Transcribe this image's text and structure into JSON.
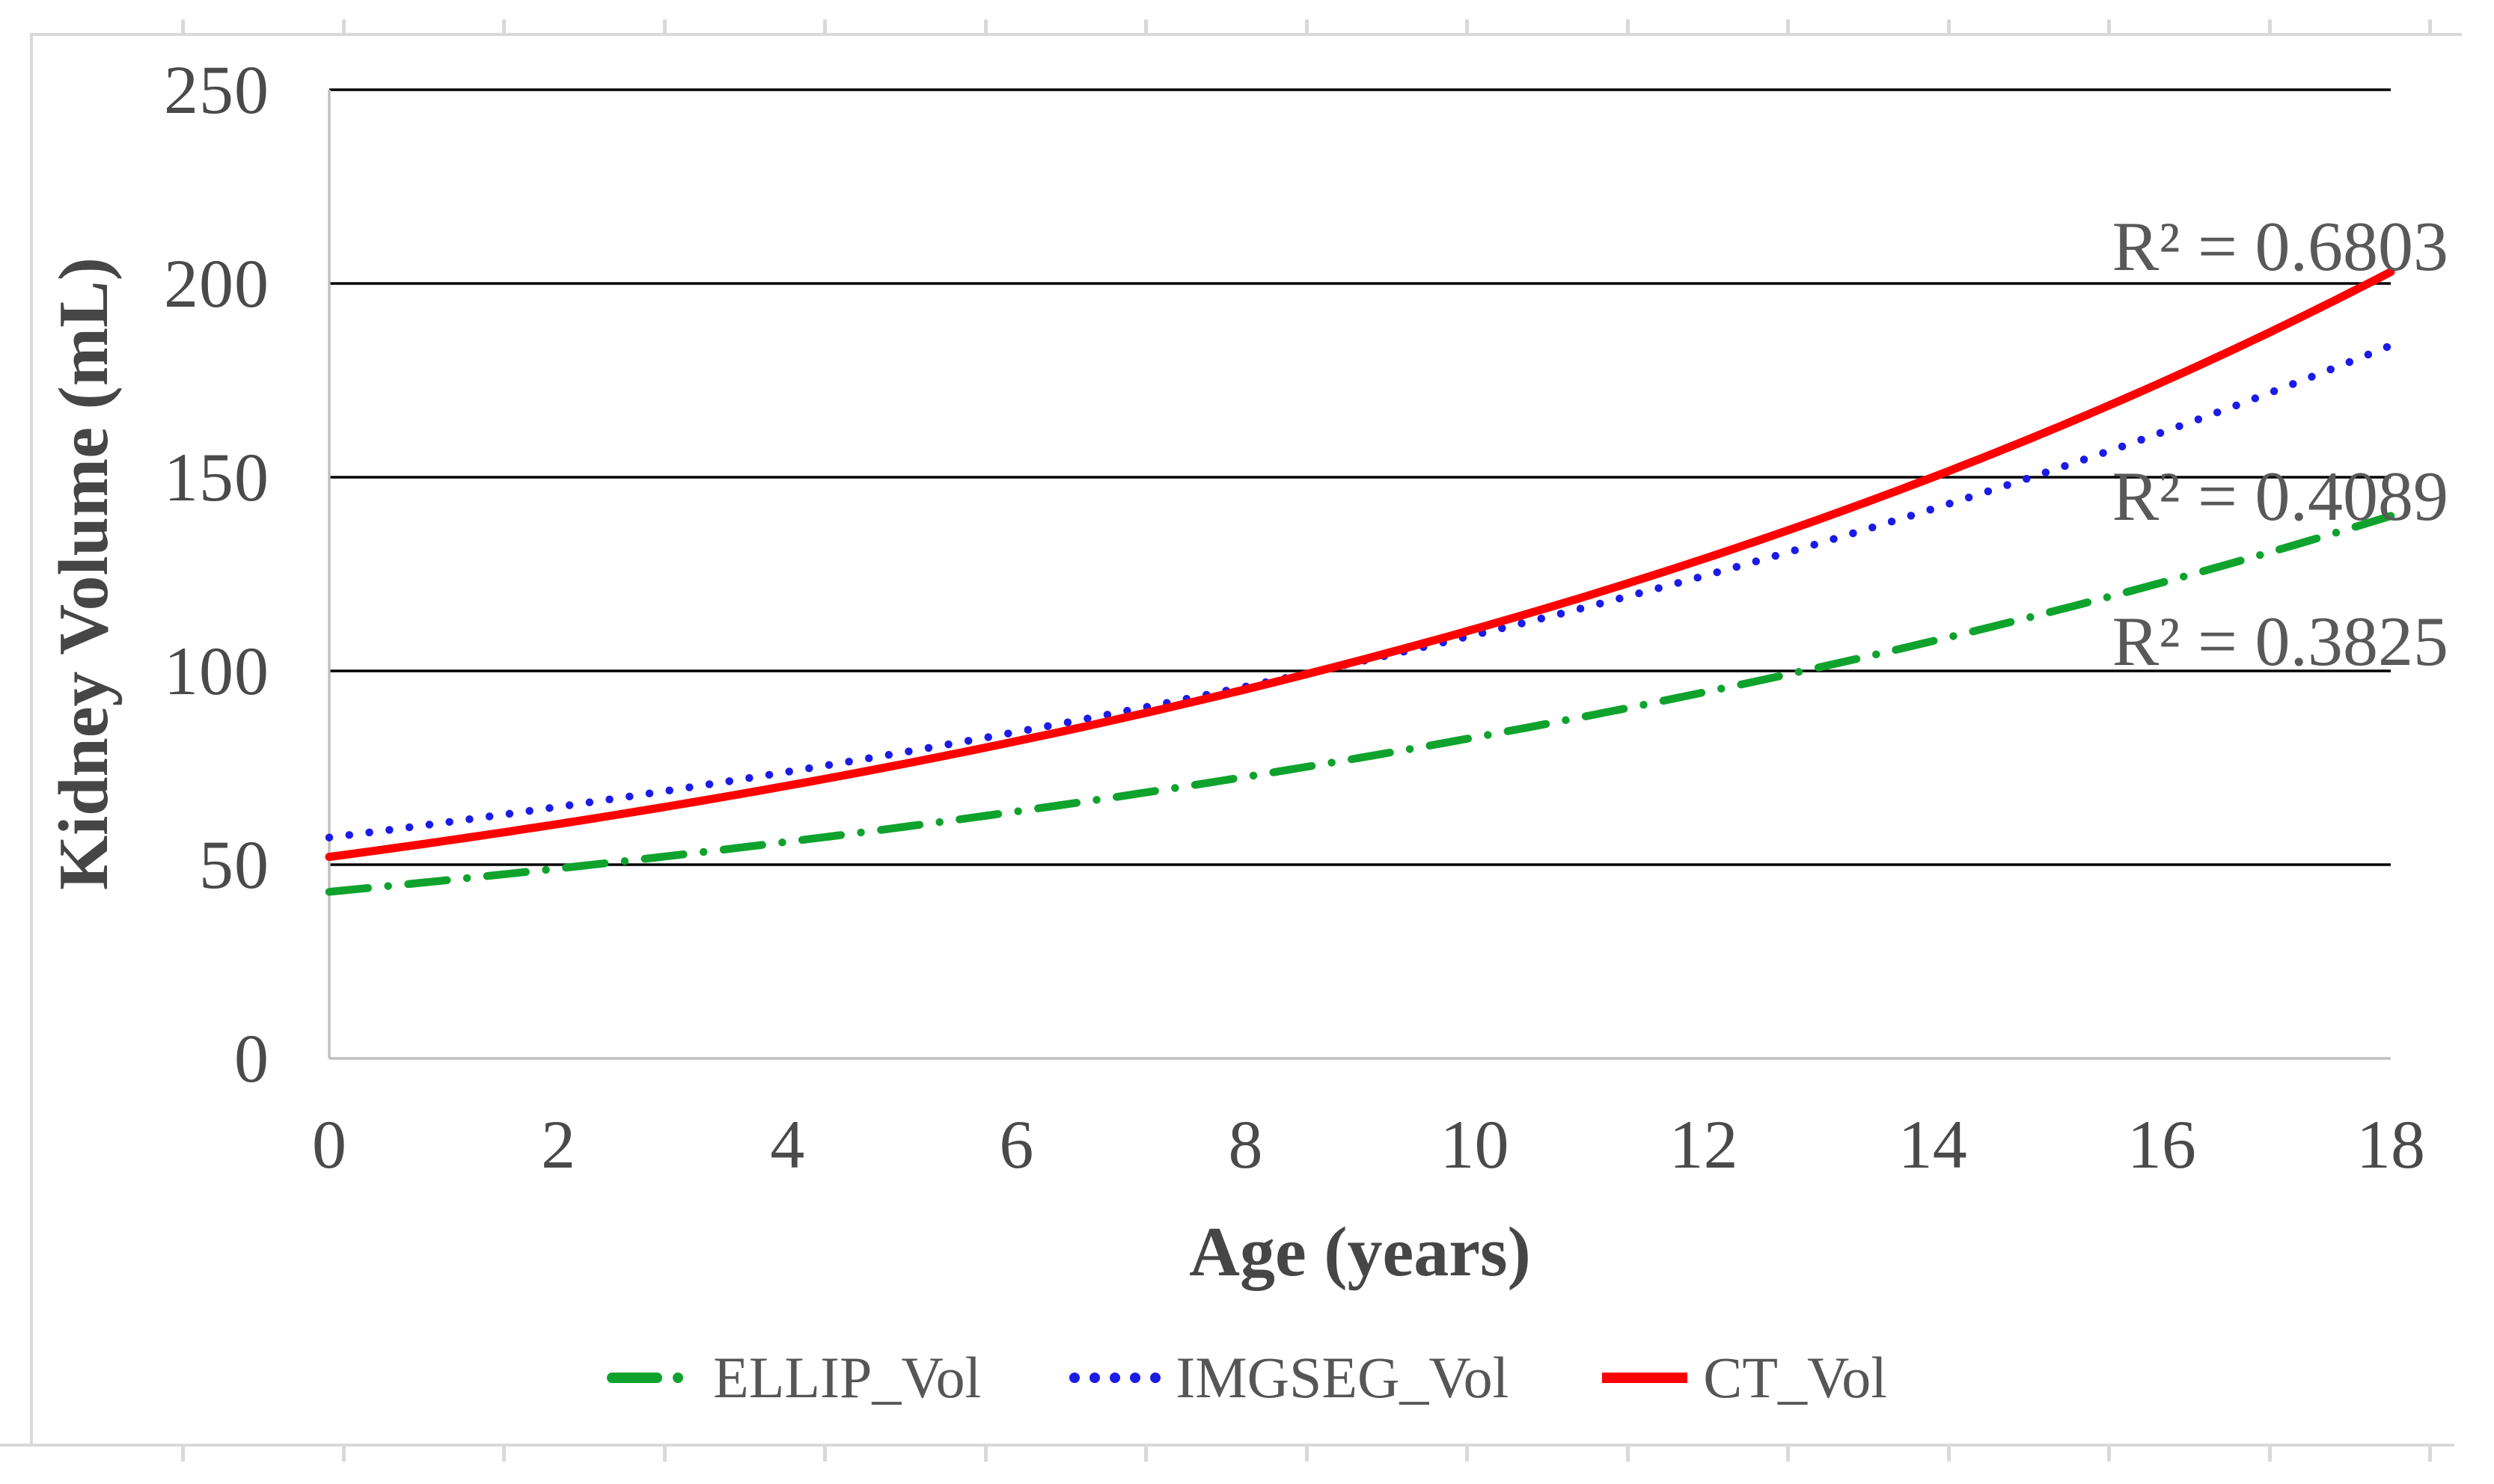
{
  "figure": {
    "background": "#ffffff",
    "frame_color": "#d9d9d9",
    "text_colors": {
      "tick": "#4a4a4a",
      "axis_title": "#464646",
      "annotation": "#595959",
      "legend": "#565656"
    },
    "y_axis": {
      "title": "Kidney Volume (mL)",
      "ticks": [
        250,
        200,
        150,
        100,
        50,
        0
      ],
      "min": 0,
      "max": 250,
      "gridline_color": "#000000",
      "axis_line_color": "#bfbfbf"
    },
    "x_axis": {
      "title": "Age (years)",
      "ticks": [
        0,
        2,
        4,
        6,
        8,
        10,
        12,
        14,
        16,
        18
      ],
      "min": 0,
      "max": 18,
      "axis_line_color": "#bfbfbf"
    },
    "annotations": [
      {
        "text": "R² = 0.6803",
        "series": "CT_Vol",
        "value_center": 209.5
      },
      {
        "text": "R² = 0.4089",
        "series": "IMGSEG_Vol",
        "value_center": 144.9
      },
      {
        "text": "R² = 0.3825",
        "series": "ELLIP_Vol",
        "value_center": 107.5
      }
    ]
  },
  "chart_data": {
    "type": "line",
    "title": "",
    "xlabel": "Age (years)",
    "ylabel": "Kidney Volume (mL)",
    "xlim": [
      0,
      18
    ],
    "ylim": [
      0,
      250
    ],
    "grid": "horizontal-only",
    "legend_position": "bottom",
    "categories": [
      0,
      2,
      4,
      6,
      8,
      10,
      12,
      14,
      16,
      18
    ],
    "series": [
      {
        "name": "ELLIP_Vol",
        "color": "#0fa32d",
        "line_style": "dash-dot",
        "model": "exponential",
        "value_at_age0": 43,
        "value_at_age18": 140,
        "r_squared": 0.3825,
        "values": [
          43.0,
          49.0,
          55.9,
          63.7,
          72.7,
          82.9,
          94.5,
          107.7,
          122.8,
          140.0
        ]
      },
      {
        "name": "IMGSEG_Vol",
        "color": "#1b1be8",
        "line_style": "dotted",
        "model": "exponential",
        "value_at_age0": 57,
        "value_at_age18": 184,
        "r_squared": 0.4089,
        "values": [
          57.0,
          64.9,
          74.0,
          84.2,
          96.0,
          109.3,
          124.5,
          141.8,
          161.6,
          184.0
        ]
      },
      {
        "name": "CT_Vol",
        "color": "#ff0000",
        "line_style": "solid",
        "model": "exponential",
        "value_at_age0": 52,
        "value_at_age18": 203,
        "r_squared": 0.6803,
        "values": [
          52.0,
          60.5,
          70.4,
          81.9,
          95.3,
          110.8,
          128.9,
          150.0,
          174.5,
          203.0
        ]
      }
    ]
  }
}
